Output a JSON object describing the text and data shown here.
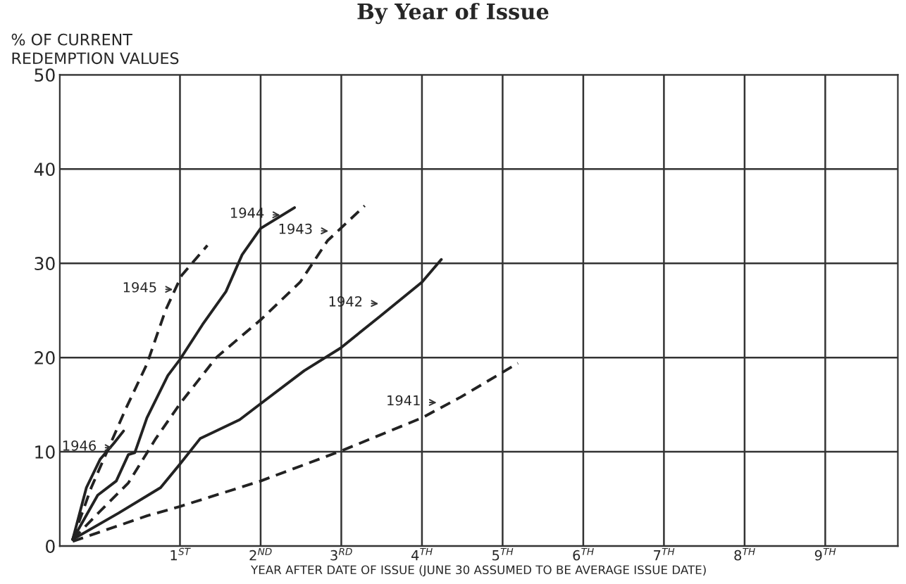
{
  "chart_data": {
    "type": "line",
    "title": "By Year of Issue",
    "ylabel": "% OF CURRENT\nREDEMPTION VALUES",
    "xlabel": "YEAR AFTER DATE OF ISSUE (JUNE 30 ASSUMED TO BE AVERAGE ISSUE DATE)",
    "xlim": [
      -0.49,
      9.9
    ],
    "ylim": [
      0,
      50
    ],
    "xticks": [
      {
        "value": 1,
        "label": "1$^{ST}$"
      },
      {
        "value": 2,
        "label": "2$^{ND}$"
      },
      {
        "value": 3,
        "label": "3$^{RD}$"
      },
      {
        "value": 4,
        "label": "4$^{TH}$"
      },
      {
        "value": 5,
        "label": "5$^{TH}$"
      },
      {
        "value": 6,
        "label": "6$^{TH}$"
      },
      {
        "value": 7,
        "label": "7$^{TH}$"
      },
      {
        "value": 8,
        "label": "8$^{TH}$"
      },
      {
        "value": 9,
        "label": "9$^{TH}$"
      }
    ],
    "yticks": [
      0,
      10,
      20,
      30,
      40,
      50
    ],
    "grid": true,
    "legend": false,
    "marker": "none",
    "series": [
      {
        "color": "#222222",
        "line_style": "solid",
        "x": [
          -0.33,
          -0.16,
          0.01,
          0.18,
          0.3
        ],
        "values": [
          0.7,
          6.2,
          9.2,
          10.9,
          12.2
        ]
      },
      {
        "color": "#222222",
        "line_style": "dashed",
        "x": [
          -0.33,
          -0.1,
          0.33,
          0.59,
          0.82,
          1.02,
          1.34
        ],
        "values": [
          0.7,
          6.2,
          14.6,
          19.3,
          25,
          28.7,
          31.9
        ]
      },
      {
        "color": "#222222",
        "line_style": "solid",
        "x": [
          -0.33,
          -0.02,
          0.21,
          0.36,
          0.44,
          0.59,
          0.85,
          1.0,
          1.28,
          1.57,
          1.77,
          2.0,
          2.42
        ],
        "values": [
          0.7,
          5.4,
          6.9,
          9.7,
          9.9,
          13.6,
          18.1,
          19.8,
          23.5,
          27,
          30.9,
          33.7,
          35.9
        ]
      },
      {
        "color": "#222222",
        "line_style": "dashed",
        "x": [
          -0.33,
          0.01,
          0.36,
          0.7,
          1.0,
          1.45,
          2.0,
          2.49,
          2.83,
          3.29
        ],
        "values": [
          0.7,
          3.7,
          6.7,
          11.4,
          15.1,
          20,
          24,
          28,
          32.4,
          36.1
        ]
      },
      {
        "color": "#222222",
        "line_style": "solid",
        "x": [
          -0.33,
          0.24,
          0.76,
          1.0,
          1.25,
          1.42,
          1.74,
          2.0,
          2.54,
          2.99,
          3.47,
          4.0,
          4.24
        ],
        "values": [
          0.7,
          3.5,
          6.2,
          8.7,
          11.4,
          12.1,
          13.4,
          15.1,
          18.6,
          21,
          24.3,
          28,
          30.4
        ]
      },
      {
        "color": "#222222",
        "line_style": "dashed",
        "x": [
          -0.33,
          0.59,
          1.0,
          2.0,
          3.0,
          4.0,
          4.48,
          5.19
        ],
        "values": [
          0.5,
          3.2,
          4.2,
          6.9,
          10.1,
          13.6,
          15.8,
          19.4
        ]
      }
    ],
    "annotations": [
      {
        "text": "1946",
        "x": 0.21,
        "y": 10.4
      },
      {
        "text": "1945",
        "x": 0.96,
        "y": 27.2
      },
      {
        "text": "1944",
        "x": 2.29,
        "y": 35.1
      },
      {
        "text": "1943",
        "x": 2.89,
        "y": 33.4
      },
      {
        "text": "1942",
        "x": 3.51,
        "y": 25.7
      },
      {
        "text": "1941",
        "x": 4.23,
        "y": 15.2
      }
    ]
  }
}
